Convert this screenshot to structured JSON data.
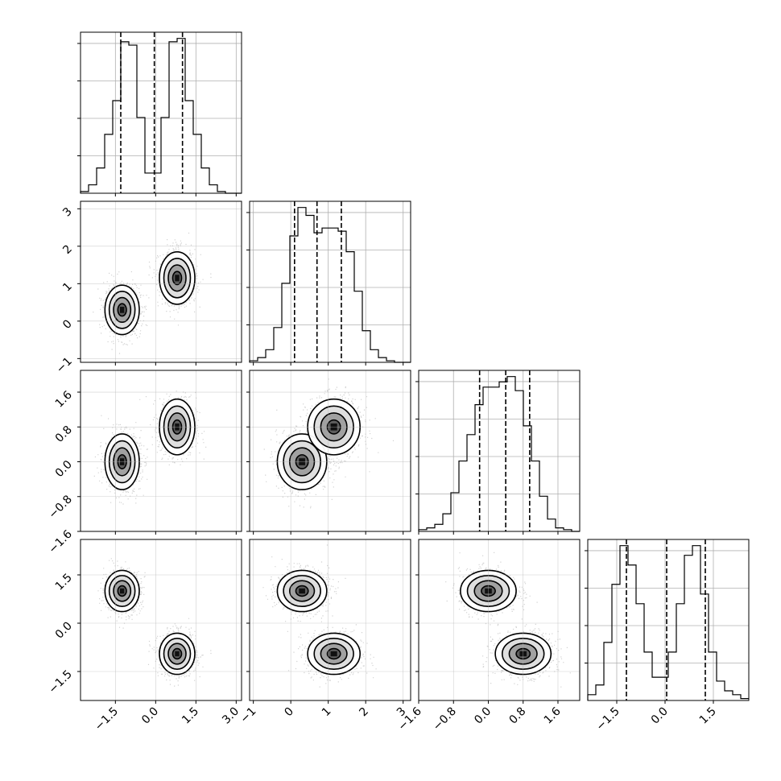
{
  "chart_data": {
    "type": "corner",
    "grid": true,
    "variables": [
      {
        "index": 0,
        "range": [
          -2.8,
          3.2
        ],
        "ticks": [
          {
            "v": -1.5,
            "label": "−1.5"
          },
          {
            "v": 0.0,
            "label": "0.0"
          },
          {
            "v": 1.5,
            "label": "1.5"
          },
          {
            "v": 3.0,
            "label": "3.0"
          }
        ],
        "quantiles": [
          -1.3,
          -0.05,
          1.0
        ]
      },
      {
        "index": 1,
        "range": [
          -1.1,
          3.2
        ],
        "ticks": [
          {
            "v": -1,
            "label": "−1"
          },
          {
            "v": 0,
            "label": "0"
          },
          {
            "v": 1,
            "label": "1"
          },
          {
            "v": 2,
            "label": "2"
          },
          {
            "v": 3,
            "label": "3"
          }
        ],
        "quantiles": [
          0.1,
          0.7,
          1.35
        ]
      },
      {
        "index": 2,
        "range": [
          -1.6,
          2.1
        ],
        "ticks": [
          {
            "v": -1.6,
            "label": "−1.6"
          },
          {
            "v": -0.8,
            "label": "−0.8"
          },
          {
            "v": 0.0,
            "label": "0.0"
          },
          {
            "v": 0.8,
            "label": "0.8"
          },
          {
            "v": 1.6,
            "label": "1.6"
          }
        ],
        "quantiles": [
          -0.2,
          0.4,
          0.95
        ]
      },
      {
        "index": 3,
        "range": [
          -2.4,
          2.6
        ],
        "ticks": [
          {
            "v": -1.5,
            "label": "−1.5"
          },
          {
            "v": 0.0,
            "label": "0.0"
          },
          {
            "v": 1.5,
            "label": "1.5"
          }
        ],
        "quantiles": [
          -1.2,
          0.05,
          1.25
        ]
      }
    ],
    "histograms": [
      {
        "var": 0,
        "start": -2.8,
        "width": 0.3,
        "counts": [
          1,
          5,
          15,
          35,
          55,
          90,
          88,
          45,
          12,
          12,
          45,
          90,
          92,
          55,
          35,
          15,
          5,
          1,
          0,
          0
        ]
      },
      {
        "var": 1,
        "start": -1.1,
        "width": 0.215,
        "counts": [
          1,
          3,
          8,
          22,
          50,
          80,
          98,
          93,
          82,
          85,
          85,
          83,
          70,
          45,
          20,
          8,
          3,
          1,
          0,
          0
        ]
      },
      {
        "var": 2,
        "start": -1.6,
        "width": 0.185,
        "counts": [
          1,
          2,
          4,
          10,
          22,
          40,
          55,
          72,
          82,
          82,
          85,
          88,
          80,
          60,
          40,
          20,
          7,
          2,
          1,
          0
        ]
      },
      {
        "var": 3,
        "start": -2.4,
        "width": 0.25,
        "counts": [
          3,
          8,
          30,
          60,
          80,
          70,
          50,
          25,
          12,
          12,
          25,
          50,
          75,
          80,
          55,
          25,
          10,
          5,
          3,
          1
        ]
      }
    ],
    "components": [
      {
        "weight": 0.5,
        "mean": [
          -1.25,
          0.3,
          0.0,
          1.0
        ],
        "sd": [
          0.32,
          0.33,
          0.32,
          0.32
        ]
      },
      {
        "weight": 0.5,
        "mean": [
          0.8,
          1.15,
          0.8,
          -0.95
        ],
        "sd": [
          0.33,
          0.35,
          0.32,
          0.32
        ]
      }
    ],
    "contour_levels_sigma": [
      0.5,
      1.0,
      1.5,
      2.0
    ]
  }
}
